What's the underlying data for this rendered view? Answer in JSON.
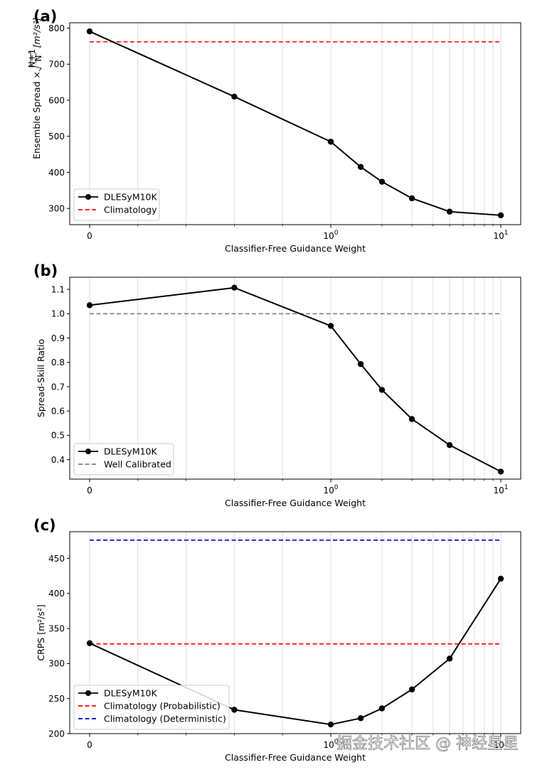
{
  "chart_data": [
    {
      "panel_label": "(a)",
      "type": "line",
      "xscale": "symlog",
      "xlabel": "Classifier-Free Guidance Weight",
      "ylabel_main": "Ensemble Spread × ",
      "ylabel_frac_num": "N+1",
      "ylabel_frac_den": "N",
      "ylabel_unit": "[m²/s²]",
      "ylim": [
        255,
        815
      ],
      "yticks": [
        300,
        400,
        500,
        600,
        700,
        800
      ],
      "x": [
        0,
        0.6,
        1,
        1.5,
        2,
        3,
        5,
        10
      ],
      "series": [
        {
          "name": "DLESyM10K",
          "color": "#000000",
          "style": "solid",
          "marker": true,
          "values": [
            791,
            610,
            485,
            415,
            374,
            328,
            291,
            281
          ]
        }
      ],
      "hlines": [
        {
          "name": "Climatology",
          "value": 762,
          "color": "#ff0000",
          "style": "dashed"
        }
      ],
      "legend": [
        "DLESyM10K",
        "Climatology"
      ],
      "legend_loc": "lower-left"
    },
    {
      "panel_label": "(b)",
      "type": "line",
      "xscale": "symlog",
      "xlabel": "Classifier-Free Guidance Weight",
      "ylabel": "Spread-Skill Ratio",
      "ylim": [
        0.32,
        1.15
      ],
      "yticks": [
        0.4,
        0.5,
        0.6,
        0.7,
        0.8,
        0.9,
        1.0,
        1.1
      ],
      "ytick_labels": [
        "0.4",
        "0.5",
        "0.6",
        "0.7",
        "0.8",
        "0.9",
        "1.0",
        "1.1"
      ],
      "x": [
        0,
        0.6,
        1,
        1.5,
        2,
        3,
        5,
        10
      ],
      "series": [
        {
          "name": "DLESyM10K",
          "color": "#000000",
          "style": "solid",
          "marker": true,
          "values": [
            1.035,
            1.107,
            0.95,
            0.793,
            0.687,
            0.567,
            0.46,
            0.351
          ]
        }
      ],
      "hlines": [
        {
          "name": "Well Calibrated",
          "value": 1.0,
          "color": "#808080",
          "style": "dashed"
        }
      ],
      "legend": [
        "DLESyM10K",
        "Well Calibrated"
      ],
      "legend_loc": "lower-left"
    },
    {
      "panel_label": "(c)",
      "type": "line",
      "xscale": "symlog",
      "xlabel": "Classifier-Free Guidance Weight",
      "ylabel": "CRPS [m²/s²]",
      "ylim": [
        200,
        488
      ],
      "yticks": [
        200,
        250,
        300,
        350,
        400,
        450
      ],
      "x": [
        0,
        0.6,
        1,
        1.5,
        2,
        3,
        5,
        10
      ],
      "series": [
        {
          "name": "DLESyM10K",
          "color": "#000000",
          "style": "solid",
          "marker": true,
          "values": [
            329,
            234,
            213,
            222,
            236,
            263,
            307,
            421
          ]
        }
      ],
      "hlines": [
        {
          "name": "Climatology (Probabilistic)",
          "value": 328,
          "color": "#ff0000",
          "style": "dashed"
        },
        {
          "name": "Climatology (Deterministic)",
          "value": 476,
          "color": "#0000cc",
          "style": "dashed"
        }
      ],
      "legend": [
        "DLESyM10K",
        "Climatology (Probabilistic)",
        "Climatology (Deterministic)"
      ],
      "legend_loc": "lower-left"
    }
  ],
  "xticks": {
    "values": [
      0,
      1,
      10
    ],
    "labels": [
      "0",
      "10",
      "10"
    ],
    "exponents": [
      "",
      "0",
      "1"
    ]
  },
  "watermark": "掘金技术社区 @ 神经星星"
}
